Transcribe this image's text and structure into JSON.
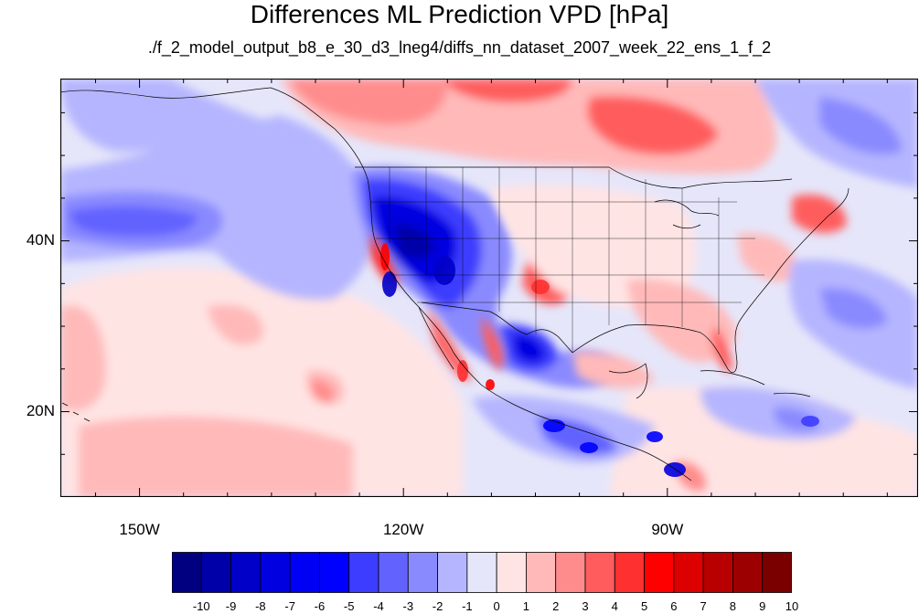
{
  "title": "Differences ML Prediction VPD [hPa]",
  "subtitle": "./f_2_model_output_b8_e_30_d3_lneg4/diffs_nn_dataset_2007_week_22_ens_1_f_2",
  "map": {
    "lat_labels": [
      {
        "text": "40N",
        "value": 40
      },
      {
        "text": "20N",
        "value": 20
      }
    ],
    "lon_labels": [
      {
        "text": "150W",
        "value": -150
      },
      {
        "text": "120W",
        "value": -120
      },
      {
        "text": "90W",
        "value": -90
      }
    ],
    "lon_range": [
      -159,
      -61.5
    ],
    "lat_range": [
      10,
      59
    ]
  },
  "colorbar": {
    "labels": [
      "-10",
      "-9",
      "-8",
      "-7",
      "-6",
      "-5",
      "-4",
      "-3",
      "-2",
      "-1",
      "0",
      "1",
      "2",
      "3",
      "4",
      "5",
      "6",
      "7",
      "8",
      "9",
      "10"
    ],
    "colors": [
      "#000080",
      "#0000a8",
      "#0000c8",
      "#0000e0",
      "#0000f4",
      "#0000ff",
      "#3d3dff",
      "#6262ff",
      "#8a8aff",
      "#b5b5ff",
      "#e6e6fa",
      "#ffe4e4",
      "#ffb9b9",
      "#ff8c8c",
      "#ff5d5d",
      "#ff3030",
      "#ff0000",
      "#dc0000",
      "#b80000",
      "#9c0000",
      "#7a0000"
    ]
  }
}
